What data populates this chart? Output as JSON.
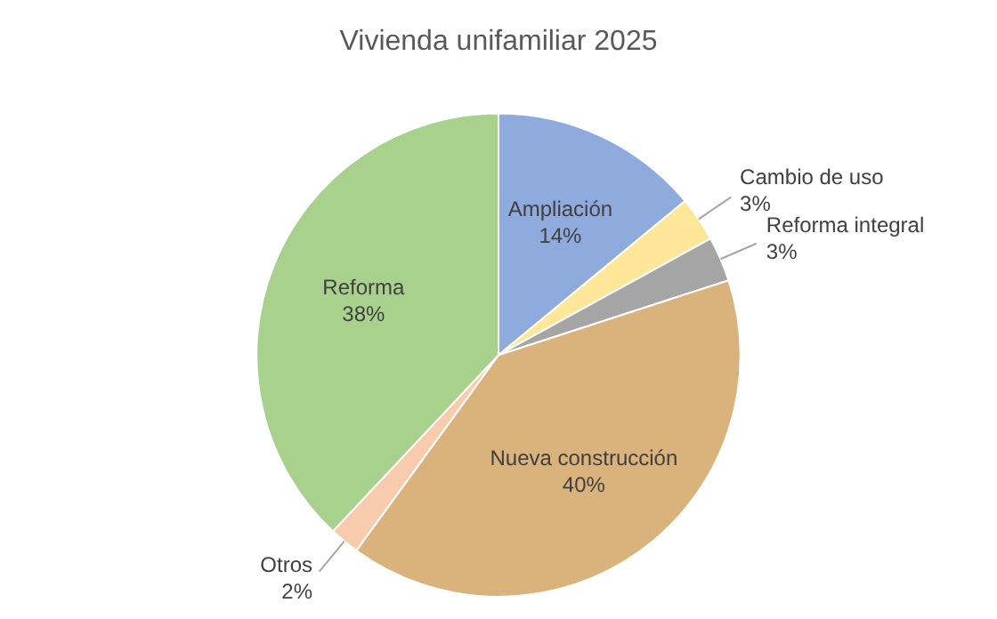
{
  "chart_data": {
    "type": "pie",
    "title": "Vivienda unifamiliar 2025",
    "categories": [
      "Ampliación",
      "Cambio de uso",
      "Reforma integral",
      "Nueva construcción",
      "Otros",
      "Reforma"
    ],
    "values": [
      14,
      3,
      3,
      40,
      2,
      38
    ],
    "value_labels": [
      "14%",
      "3%",
      "3%",
      "40%",
      "2%",
      "38%"
    ],
    "colors": [
      "#8faadc",
      "#ffe699",
      "#a5a5a5",
      "#d9b27c",
      "#f8cbad",
      "#a9d18e"
    ],
    "legend": false
  }
}
